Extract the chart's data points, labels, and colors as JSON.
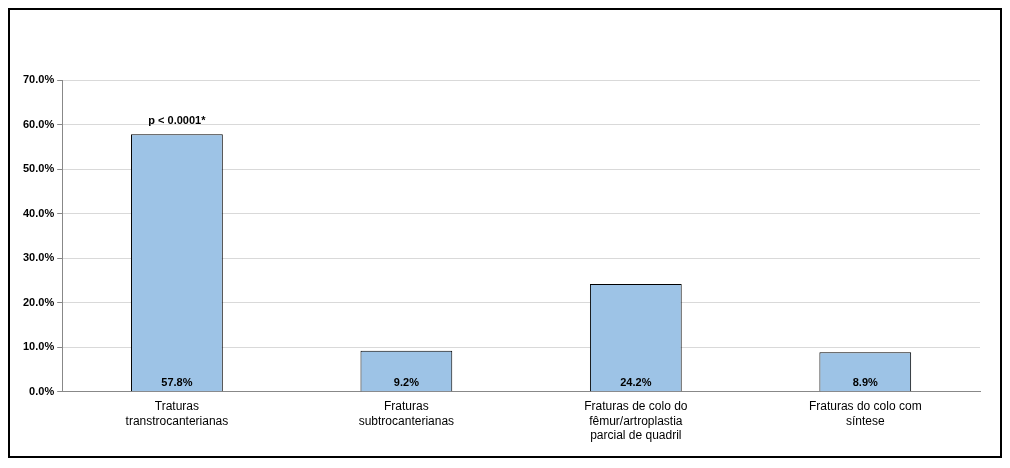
{
  "chart_data": {
    "type": "bar",
    "categories": [
      "Traturas transtrocanterianas",
      "Fraturas subtrocanterianas",
      "Fraturas de colo do fêmur/artroplastia parcial de quadril",
      "Fraturas do colo com síntese"
    ],
    "values": [
      57.8,
      9.2,
      24.2,
      8.9
    ],
    "value_labels": [
      "57.8%",
      "9.2%",
      "24.2%",
      "8.9%"
    ],
    "color": "#9dc3e6",
    "ylim": [
      0,
      70
    ],
    "yticks": [
      {
        "value": 0,
        "label": "0.0%"
      },
      {
        "value": 10,
        "label": "10.0%"
      },
      {
        "value": 20,
        "label": "20.0%"
      },
      {
        "value": 30,
        "label": "30.0%"
      },
      {
        "value": 40,
        "label": "40.0%"
      },
      {
        "value": 50,
        "label": "50.0%"
      },
      {
        "value": 60,
        "label": "60.0%"
      },
      {
        "value": 70,
        "label": "70.0%"
      }
    ],
    "grid": "y",
    "legend": false,
    "annotations": [
      {
        "text": "p < 0.0001*",
        "x": "Traturas transtrocanterianas",
        "y": 57.8
      }
    ]
  }
}
